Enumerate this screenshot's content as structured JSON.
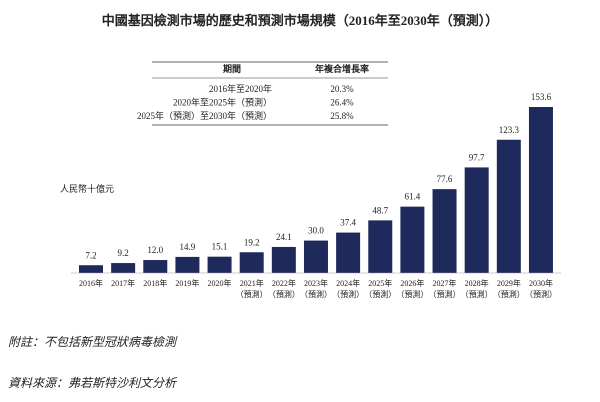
{
  "title": "中國基因檢測市場的歷史和預測市場規模（2016年至2030年（預測））",
  "table": {
    "headers": [
      "期間",
      "年複合增長率"
    ],
    "rows": [
      [
        "2016年至2020年",
        "20.3%"
      ],
      [
        "2020年至2025年（預測）",
        "26.4%"
      ],
      [
        "2025年（預測）至2030年（預測）",
        "25.8%"
      ]
    ]
  },
  "chart_data": {
    "type": "bar",
    "unit_label": "人民幣十億元",
    "categories": [
      "2016年",
      "2017年",
      "2018年",
      "2019年",
      "2020年",
      "2021年\n（預測）",
      "2022年\n（預測）",
      "2023年\n（預測）",
      "2024年\n（預測）",
      "2025年\n（預測）",
      "2026年\n（預測）",
      "2027年\n（預測）",
      "2028年\n（預測）",
      "2029年\n（預測）",
      "2030年\n（預測）"
    ],
    "values": [
      7.2,
      9.2,
      12.0,
      14.9,
      15.1,
      19.2,
      24.1,
      30.0,
      37.4,
      48.7,
      61.4,
      77.6,
      97.7,
      123.3,
      153.6
    ],
    "value_labels": [
      "7.2",
      "9.2",
      "12.0",
      "14.9",
      "15.1",
      "19.2",
      "24.1",
      "30.0",
      "37.4",
      "48.7",
      "61.4",
      "77.6",
      "97.7",
      "123.3",
      "153.6"
    ],
    "color": "#1f2a5c"
  },
  "footnotes": [
    "附註：不包括新型冠狀病毒檢測",
    "資料來源：弗若斯特沙利文分析"
  ]
}
